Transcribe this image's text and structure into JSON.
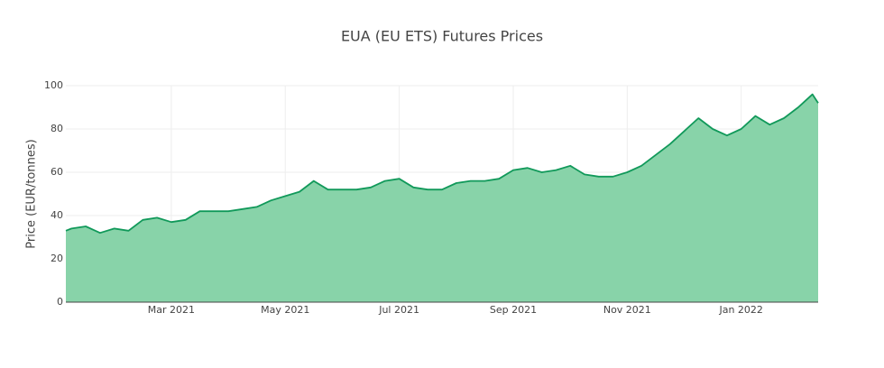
{
  "chart_data": {
    "type": "area",
    "title": "EUA (EU ETS) Futures Prices",
    "y_label": "Price (EUR/tonnes)",
    "color": "#11995a",
    "fill_color": "#88d3a9",
    "grid": true,
    "xlim": [
      0.15,
      13.35
    ],
    "xticks": [
      {
        "value": 2,
        "label": "Mar 2021"
      },
      {
        "value": 4,
        "label": "May 2021"
      },
      {
        "value": 6,
        "label": "Jul 2021"
      },
      {
        "value": 8,
        "label": "Sep 2021"
      },
      {
        "value": 10,
        "label": "Nov 2021"
      },
      {
        "value": 12,
        "label": "Jan 2022"
      }
    ],
    "ylim": [
      0,
      100
    ],
    "yticks": [
      0,
      20,
      40,
      60,
      80,
      100
    ],
    "x": [
      0.15,
      0.25,
      0.5,
      0.75,
      1.0,
      1.25,
      1.5,
      1.75,
      2.0,
      2.25,
      2.5,
      2.75,
      3.0,
      3.25,
      3.5,
      3.75,
      4.0,
      4.25,
      4.5,
      4.75,
      5.0,
      5.25,
      5.5,
      5.75,
      6.0,
      6.25,
      6.5,
      6.75,
      7.0,
      7.25,
      7.5,
      7.75,
      8.0,
      8.25,
      8.5,
      8.75,
      9.0,
      9.25,
      9.5,
      9.75,
      10.0,
      10.25,
      10.5,
      10.75,
      11.0,
      11.25,
      11.5,
      11.75,
      12.0,
      12.25,
      12.5,
      12.75,
      13.0,
      13.25,
      13.35
    ],
    "values": [
      33,
      34,
      35,
      32,
      34,
      33,
      38,
      39,
      37,
      38,
      42,
      42,
      42,
      43,
      44,
      47,
      49,
      51,
      56,
      52,
      52,
      52,
      53,
      56,
      57,
      53,
      52,
      52,
      55,
      56,
      56,
      57,
      61,
      62,
      60,
      61,
      63,
      59,
      58,
      58,
      60,
      63,
      68,
      73,
      79,
      85,
      80,
      77,
      80,
      86,
      82,
      85,
      90,
      96,
      92
    ]
  }
}
